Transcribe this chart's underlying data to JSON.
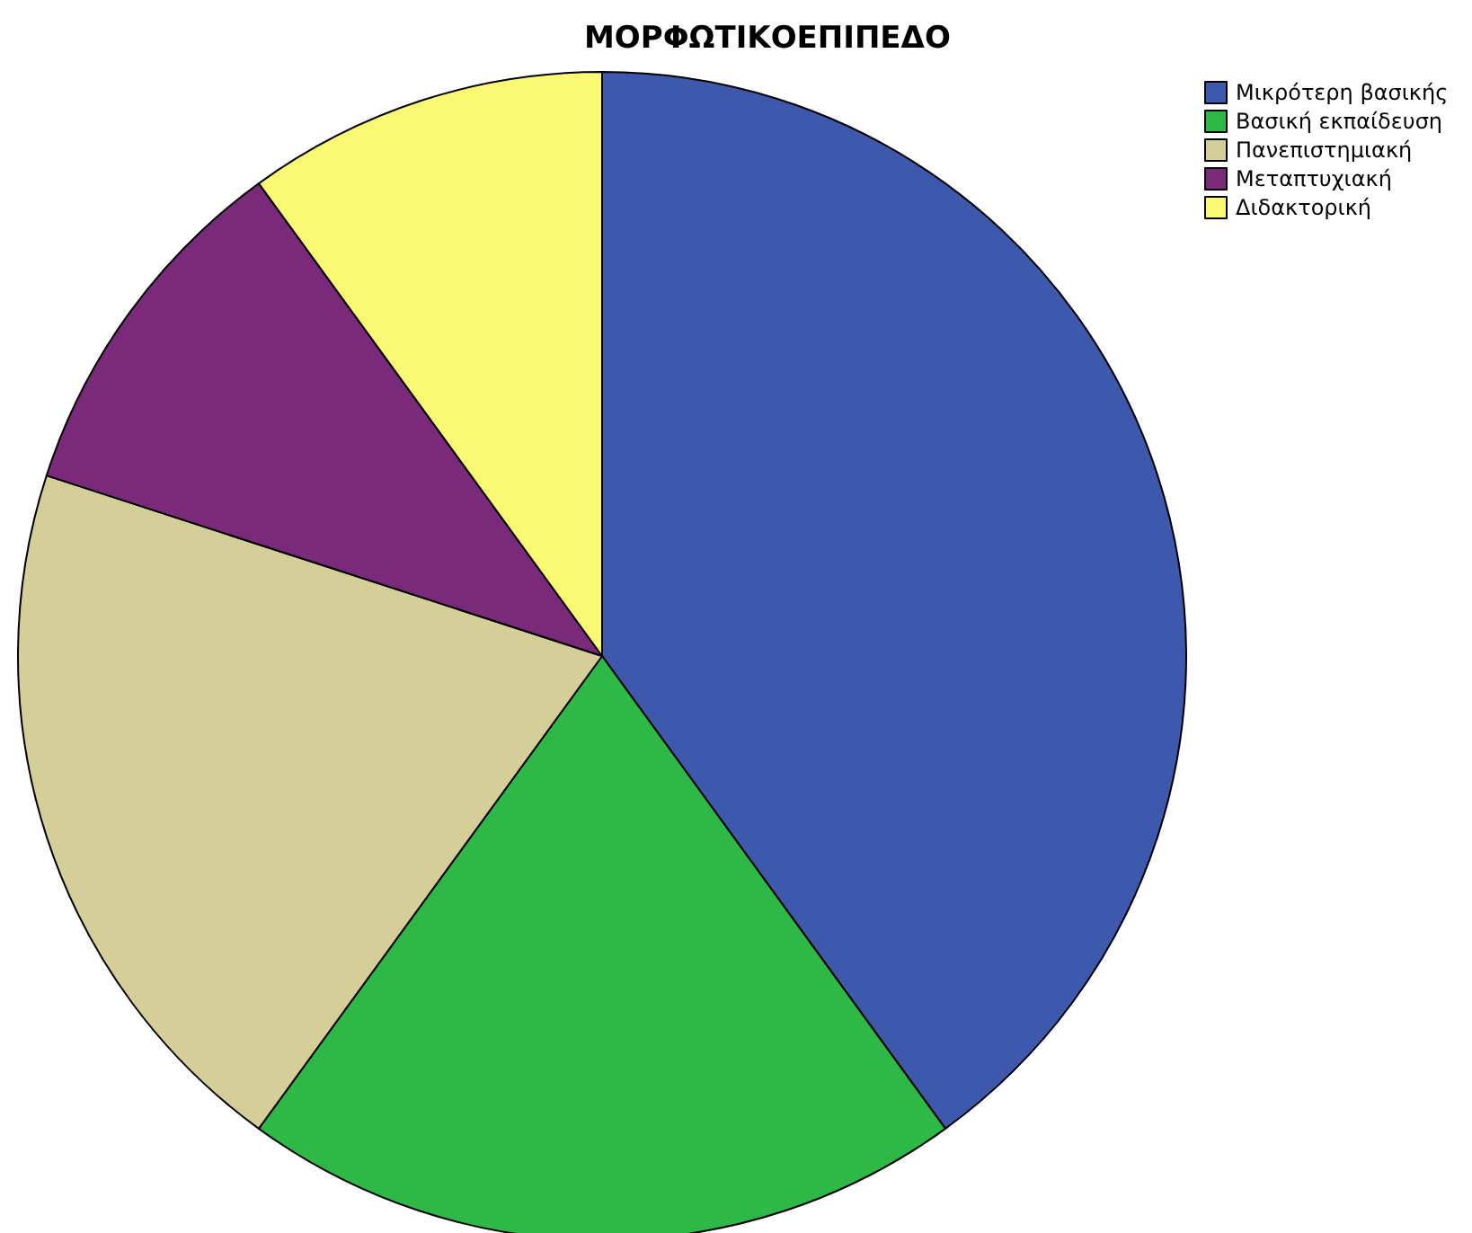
{
  "chart_data": {
    "type": "pie",
    "title": "ΜΟΡΦΩΤΙΚΟΕΠΙΠΕΔΟ",
    "categories": [
      "Μικρότερη βασικής",
      "Βασική εκπαίδευση",
      "Πανεπιστημιακή",
      "Μεταπτυχιακή",
      "Διδακτορική"
    ],
    "values": [
      40,
      20,
      20,
      10,
      10
    ],
    "colors": [
      "#3e58ac",
      "#2eb848",
      "#d4ce99",
      "#7a2a7a",
      "#fbf873"
    ],
    "legend": "top right"
  }
}
